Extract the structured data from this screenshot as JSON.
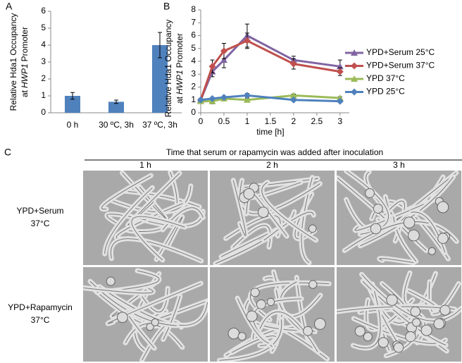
{
  "panel_labels": [
    "A",
    "B",
    "C"
  ],
  "chart_data": [
    {
      "type": "bar",
      "y_label": {
        "line1": "Relative Hda1 Occupancy",
        "line2": [
          "at",
          "HWP1",
          "Promoter"
        ]
      },
      "categories": [
        "0 h",
        "30 ºC, 3h",
        "37 ºC, 3h"
      ],
      "values": [
        1.0,
        0.65,
        4.0
      ],
      "errors": [
        0.2,
        0.1,
        0.75
      ],
      "color": "#4f81bd",
      "ylim": [
        0,
        6
      ],
      "yticks": [
        0,
        1,
        2,
        3,
        4,
        5,
        6
      ]
    },
    {
      "type": "line",
      "y_label": {
        "line1": "Relative Hda1 Occupancy",
        "line2": [
          "at",
          "HWP1",
          "Promoter"
        ]
      },
      "x_label": "time [h]",
      "x": [
        0,
        0.25,
        0.5,
        1,
        2,
        3
      ],
      "xlim": [
        0,
        3.2
      ],
      "xticks": [
        0,
        0.5,
        1,
        1.5,
        2,
        2.5,
        3
      ],
      "ylim": [
        0,
        8
      ],
      "yticks": [
        0,
        1,
        2,
        3,
        4,
        5,
        6,
        7,
        8
      ],
      "legend": "right",
      "series": [
        {
          "name": "YPD+Serum 25°C",
          "color": "#8064a2",
          "marker": "triangle",
          "values": [
            1.0,
            3.2,
            4.1,
            6.0,
            4.1,
            3.6
          ],
          "errors": [
            0.1,
            0.4,
            0.6,
            0.9,
            0.3,
            0.5
          ]
        },
        {
          "name": "YPD+Serum 37°C",
          "color": "#c0504d",
          "marker": "diamond",
          "values": [
            1.0,
            3.6,
            4.8,
            5.6,
            3.8,
            3.2
          ],
          "errors": [
            0.1,
            0.5,
            0.6,
            0.6,
            0.4,
            0.3
          ]
        },
        {
          "name": "YPD 37°C",
          "color": "#9bbb59",
          "marker": "triangle",
          "values": [
            0.9,
            0.9,
            1.1,
            1.0,
            1.35,
            1.15
          ],
          "errors": [
            0.1,
            0.2,
            0.1,
            0.1,
            0.1,
            0.1
          ]
        },
        {
          "name": "YPD 25°C",
          "color": "#4f81bd",
          "marker": "diamond",
          "values": [
            1.0,
            1.1,
            1.2,
            1.35,
            1.0,
            0.9
          ],
          "errors": [
            0.1,
            0.1,
            0.1,
            0.15,
            0.1,
            0.1
          ]
        }
      ]
    }
  ],
  "panel_c": {
    "title": "Time that serum or rapamycin was added after inoculation",
    "columns": [
      "1 h",
      "2 h",
      "3 h"
    ],
    "rows": [
      [
        "YPD+Serum",
        "37°C"
      ],
      [
        "YPD+Rapamycin",
        "37°C"
      ]
    ]
  }
}
